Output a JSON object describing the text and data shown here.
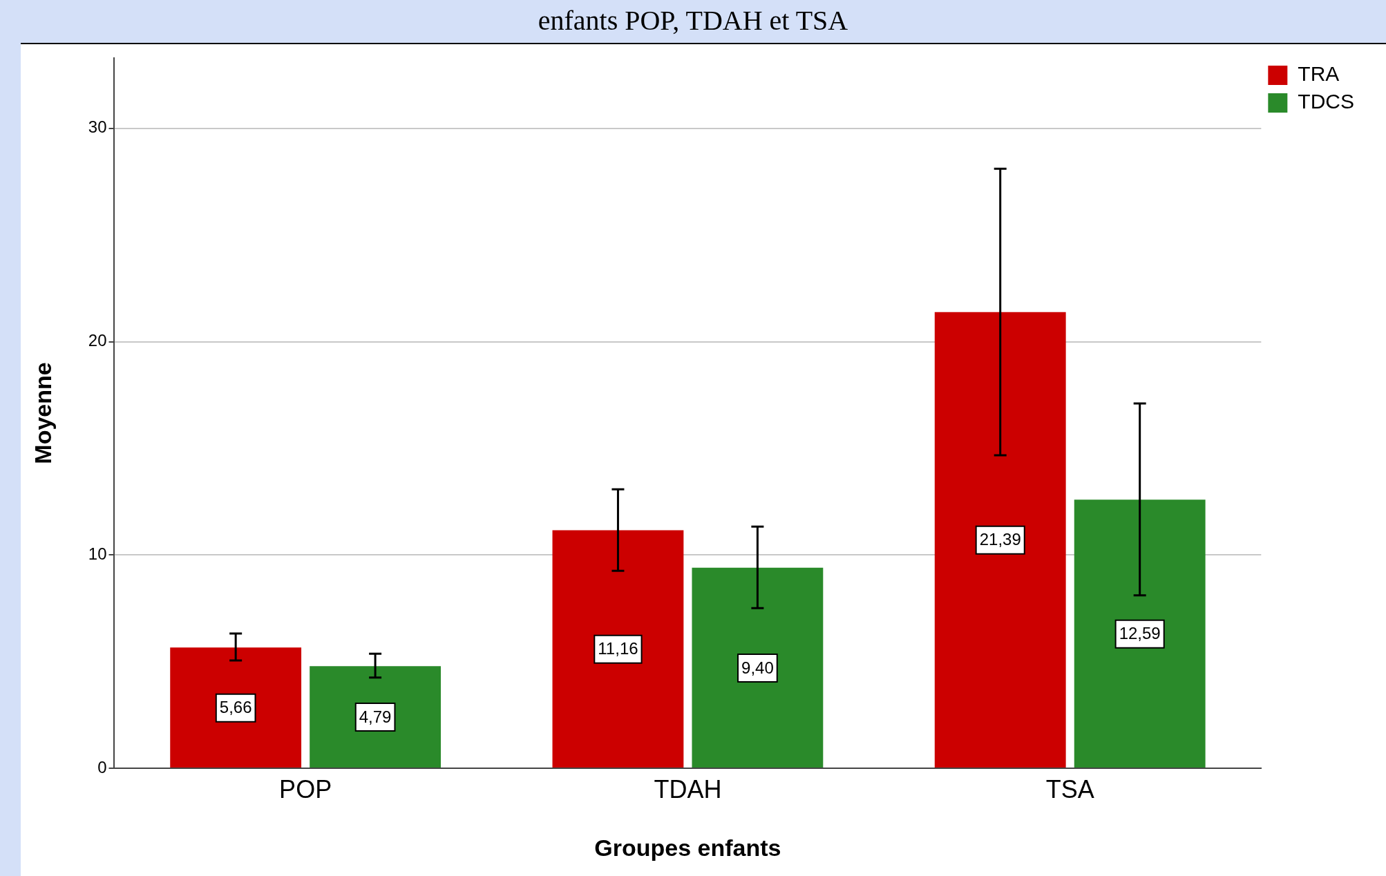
{
  "chart_data": {
    "type": "bar",
    "title": "enfants POP, TDAH et TSA",
    "xlabel": "Groupes enfants",
    "ylabel": "Moyenne",
    "categories": [
      "POP",
      "TDAH",
      "TSA"
    ],
    "series": [
      {
        "name": "TRA",
        "color": "#cc0000",
        "values": [
          5.66,
          11.16,
          21.39
        ],
        "value_labels": [
          "5,66",
          "11,16",
          "21,39"
        ],
        "errors": [
          [
            5.05,
            6.32
          ],
          [
            9.26,
            13.08
          ],
          [
            14.67,
            28.11
          ]
        ]
      },
      {
        "name": "TDCS",
        "color": "#2a8a2a",
        "values": [
          4.79,
          9.4,
          12.59
        ],
        "value_labels": [
          "4,79",
          "9,40",
          "12,59"
        ],
        "errors": [
          [
            4.25,
            5.37
          ],
          [
            7.51,
            11.33
          ],
          [
            8.11,
            17.1
          ]
        ]
      }
    ],
    "ylim": [
      0,
      33.3
    ],
    "yticks": [
      0,
      10,
      20,
      30
    ],
    "grid": "y",
    "legend": "top right"
  }
}
